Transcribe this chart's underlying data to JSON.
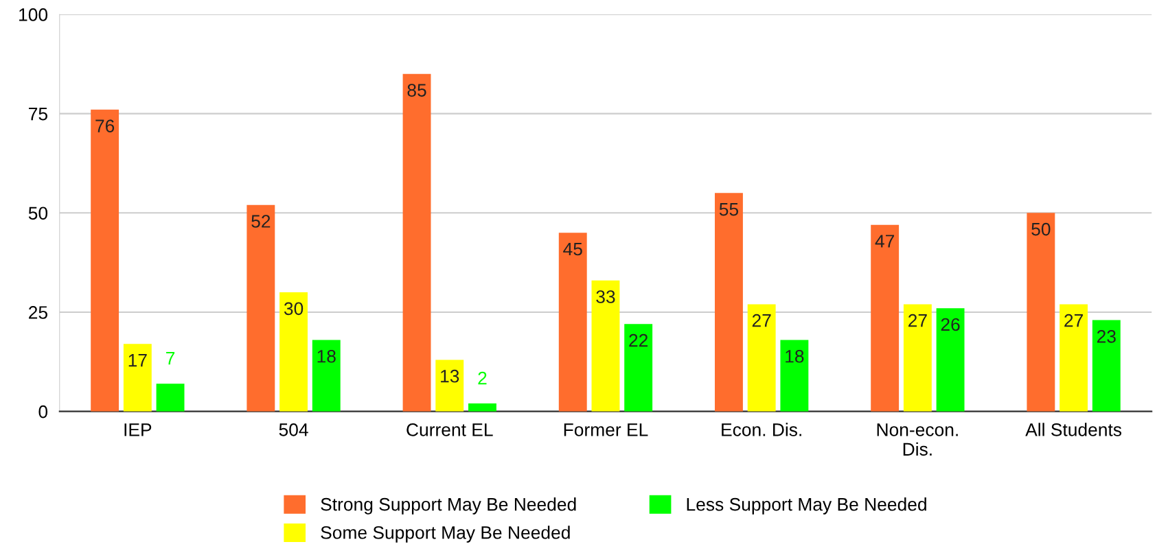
{
  "chart_data": {
    "type": "bar",
    "categories": [
      "IEP",
      "504",
      "Current EL",
      "Former EL",
      "Econ. Dis.",
      "Non-econ.\nDis.",
      "All Students"
    ],
    "series": [
      {
        "name": "Strong Support May Be Needed",
        "color": "#ff6d2d",
        "values": [
          76,
          52,
          85,
          45,
          55,
          47,
          50
        ]
      },
      {
        "name": "Some Support May Be Needed",
        "color": "#ffff00",
        "values": [
          17,
          30,
          13,
          33,
          27,
          27,
          27
        ]
      },
      {
        "name": "Less Support May Be Needed",
        "color": "#00ff00",
        "values": [
          7,
          18,
          2,
          22,
          18,
          26,
          23
        ]
      }
    ],
    "ylim": [
      0,
      100
    ],
    "yticks": [
      0,
      25,
      50,
      75,
      100
    ],
    "grid": "y",
    "legend": "bottom",
    "data_labels": true
  }
}
